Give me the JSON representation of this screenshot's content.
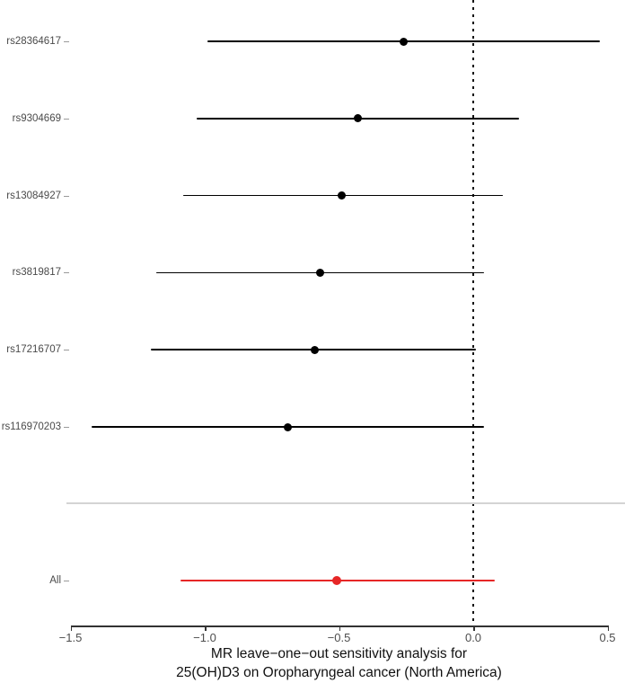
{
  "chart_data": {
    "type": "scatter",
    "variant": "forest-plot-leave-one-out",
    "xlabel_lines": [
      "MR leave−one−out sensitivity analysis for",
      "25(OH)D3 on Oropharyngeal cancer (North America)"
    ],
    "x_ticks": [
      {
        "value": -1.5,
        "label": "−1.5"
      },
      {
        "value": -1.0,
        "label": "−1.0"
      },
      {
        "value": -0.5,
        "label": "−0.5"
      },
      {
        "value": 0.0,
        "label": "0.0"
      },
      {
        "value": 0.5,
        "label": "0.5"
      }
    ],
    "xlim": [
      -1.51,
      0.57
    ],
    "reference_line_x": 0,
    "grid": false,
    "legend": "none",
    "rows": [
      {
        "label": "rs28364617",
        "estimate": -0.26,
        "ci_low": -0.99,
        "ci_high": 0.47,
        "color": "#000000",
        "group": "snp"
      },
      {
        "label": "rs9304669",
        "estimate": -0.43,
        "ci_low": -1.03,
        "ci_high": 0.17,
        "color": "#000000",
        "group": "snp"
      },
      {
        "label": "rs13084927",
        "estimate": -0.49,
        "ci_low": -1.08,
        "ci_high": 0.11,
        "color": "#000000",
        "group": "snp"
      },
      {
        "label": "rs3819817",
        "estimate": -0.57,
        "ci_low": -1.18,
        "ci_high": 0.04,
        "color": "#000000",
        "group": "snp"
      },
      {
        "label": "rs17216707",
        "estimate": -0.59,
        "ci_low": -1.2,
        "ci_high": 0.01,
        "color": "#000000",
        "group": "snp"
      },
      {
        "label": "rs116970203",
        "estimate": -0.69,
        "ci_low": -1.42,
        "ci_high": 0.04,
        "color": "#000000",
        "group": "snp"
      },
      {
        "label": "All",
        "estimate": -0.51,
        "ci_low": -1.09,
        "ci_high": 0.08,
        "color": "#e62626",
        "group": "summary"
      }
    ],
    "colors": {
      "summary": "#e62626",
      "snp": "#000000",
      "separator": "#d4d4d4",
      "axis": "#333333",
      "tick_label": "#4d4d4d",
      "row_label": "#4a4a4a",
      "reference_line": "#111111"
    }
  }
}
